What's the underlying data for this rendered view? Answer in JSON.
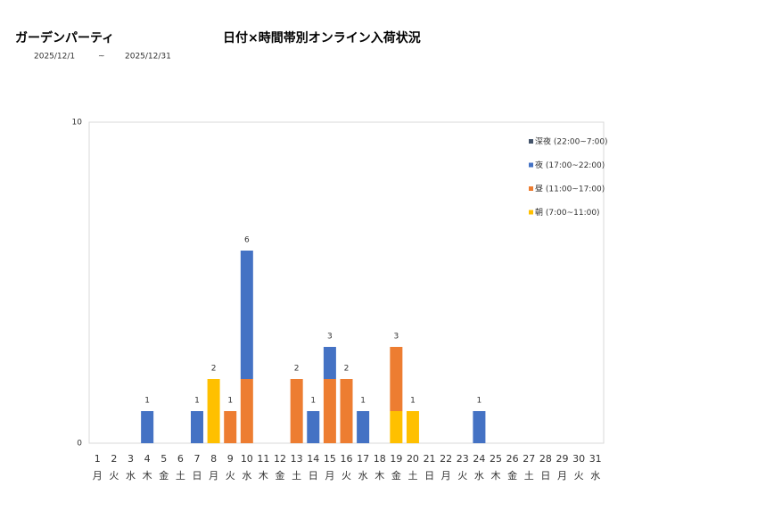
{
  "header": {
    "title": "ガーデンパーティ",
    "date_from": "2025/12/1",
    "date_sep": "~",
    "date_to": "2025/12/31"
  },
  "chart_data": {
    "type": "stacked-bar",
    "title": "日付×時間帯別オンライン入荷状況",
    "categories": [
      "1",
      "2",
      "3",
      "4",
      "5",
      "6",
      "7",
      "8",
      "9",
      "10",
      "11",
      "12",
      "13",
      "14",
      "15",
      "16",
      "17",
      "18",
      "19",
      "20",
      "21",
      "22",
      "23",
      "24",
      "25",
      "26",
      "27",
      "28",
      "29",
      "30",
      "31"
    ],
    "weekdays": [
      "月",
      "火",
      "水",
      "木",
      "金",
      "土",
      "日",
      "月",
      "火",
      "水",
      "木",
      "金",
      "土",
      "日",
      "月",
      "火",
      "水",
      "木",
      "金",
      "土",
      "日",
      "月",
      "火",
      "水",
      "木",
      "金",
      "土",
      "日",
      "月",
      "火",
      "水"
    ],
    "series": [
      {
        "name": "深夜 (22:00~7:00)",
        "color": "#44546a",
        "values": [
          0,
          0,
          0,
          0,
          0,
          0,
          0,
          0,
          0,
          0,
          0,
          0,
          0,
          0,
          0,
          0,
          0,
          0,
          0,
          0,
          0,
          0,
          0,
          0,
          0,
          0,
          0,
          0,
          0,
          0,
          0
        ]
      },
      {
        "name": "夜 (17:00~22:00)",
        "color": "#4472c4",
        "values": [
          0,
          0,
          0,
          1,
          0,
          0,
          1,
          0,
          0,
          4,
          0,
          0,
          0,
          1,
          1,
          0,
          1,
          0,
          0,
          0,
          0,
          0,
          0,
          1,
          0,
          0,
          0,
          0,
          0,
          0,
          0
        ]
      },
      {
        "name": "昼 (11:00~17:00)",
        "color": "#ed7d31",
        "values": [
          0,
          0,
          0,
          0,
          0,
          0,
          0,
          0,
          1,
          2,
          0,
          0,
          2,
          0,
          2,
          2,
          0,
          0,
          2,
          0,
          0,
          0,
          0,
          0,
          0,
          0,
          0,
          0,
          0,
          0,
          0
        ]
      },
      {
        "name": "朝 (7:00~11:00)",
        "color": "#ffc000",
        "values": [
          0,
          0,
          0,
          0,
          0,
          0,
          0,
          2,
          0,
          0,
          0,
          0,
          0,
          0,
          0,
          0,
          0,
          0,
          1,
          1,
          0,
          0,
          0,
          0,
          0,
          0,
          0,
          0,
          0,
          0,
          0
        ]
      }
    ],
    "totals": [
      null,
      null,
      null,
      1,
      null,
      null,
      1,
      2,
      1,
      6,
      null,
      null,
      2,
      1,
      3,
      2,
      1,
      null,
      3,
      1,
      null,
      null,
      null,
      1,
      null,
      null,
      null,
      null,
      null,
      null,
      null
    ],
    "ylim": [
      0,
      10
    ],
    "yticks": [
      0,
      10
    ],
    "legend": "upper right"
  }
}
